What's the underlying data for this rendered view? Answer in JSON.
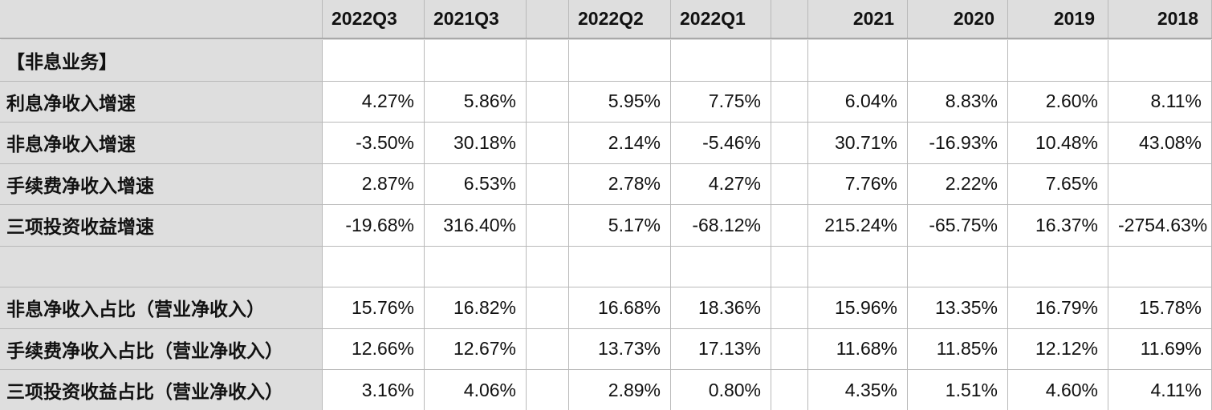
{
  "headers": [
    "",
    "2022Q3",
    "2021Q3",
    "",
    "2022Q2",
    "2022Q1",
    "",
    "2021",
    "2020",
    "2019",
    "2018"
  ],
  "rows": [
    {
      "label": "【非息业务】",
      "values": [
        "",
        "",
        "",
        "",
        "",
        "",
        "",
        "",
        "",
        ""
      ]
    },
    {
      "label": "利息净收入增速",
      "values": [
        "4.27%",
        "5.86%",
        "",
        "5.95%",
        "7.75%",
        "",
        "6.04%",
        "8.83%",
        "2.60%",
        "8.11%"
      ]
    },
    {
      "label": "非息净收入增速",
      "values": [
        "-3.50%",
        "30.18%",
        "",
        "2.14%",
        "-5.46%",
        "",
        "30.71%",
        "-16.93%",
        "10.48%",
        "43.08%"
      ]
    },
    {
      "label": "手续费净收入增速",
      "values": [
        "2.87%",
        "6.53%",
        "",
        "2.78%",
        "4.27%",
        "",
        "7.76%",
        "2.22%",
        "7.65%",
        ""
      ]
    },
    {
      "label": "三项投资收益增速",
      "values": [
        "-19.68%",
        "316.40%",
        "",
        "5.17%",
        "-68.12%",
        "",
        "215.24%",
        "-65.75%",
        "16.37%",
        "-2754.63%"
      ]
    },
    {
      "label": "",
      "values": [
        "",
        "",
        "",
        "",
        "",
        "",
        "",
        "",
        "",
        ""
      ]
    },
    {
      "label": "非息净收入占比（营业净收入）",
      "values": [
        "15.76%",
        "16.82%",
        "",
        "16.68%",
        "18.36%",
        "",
        "15.96%",
        "13.35%",
        "16.79%",
        "15.78%"
      ]
    },
    {
      "label": "手续费净收入占比（营业净收入）",
      "values": [
        "12.66%",
        "12.67%",
        "",
        "13.73%",
        "17.13%",
        "",
        "11.68%",
        "11.85%",
        "12.12%",
        "11.69%"
      ]
    },
    {
      "label": "三项投资收益占比（营业净收入）",
      "values": [
        "3.16%",
        "4.06%",
        "",
        "2.89%",
        "0.80%",
        "",
        "4.35%",
        "1.51%",
        "4.60%",
        "4.11%"
      ]
    }
  ]
}
